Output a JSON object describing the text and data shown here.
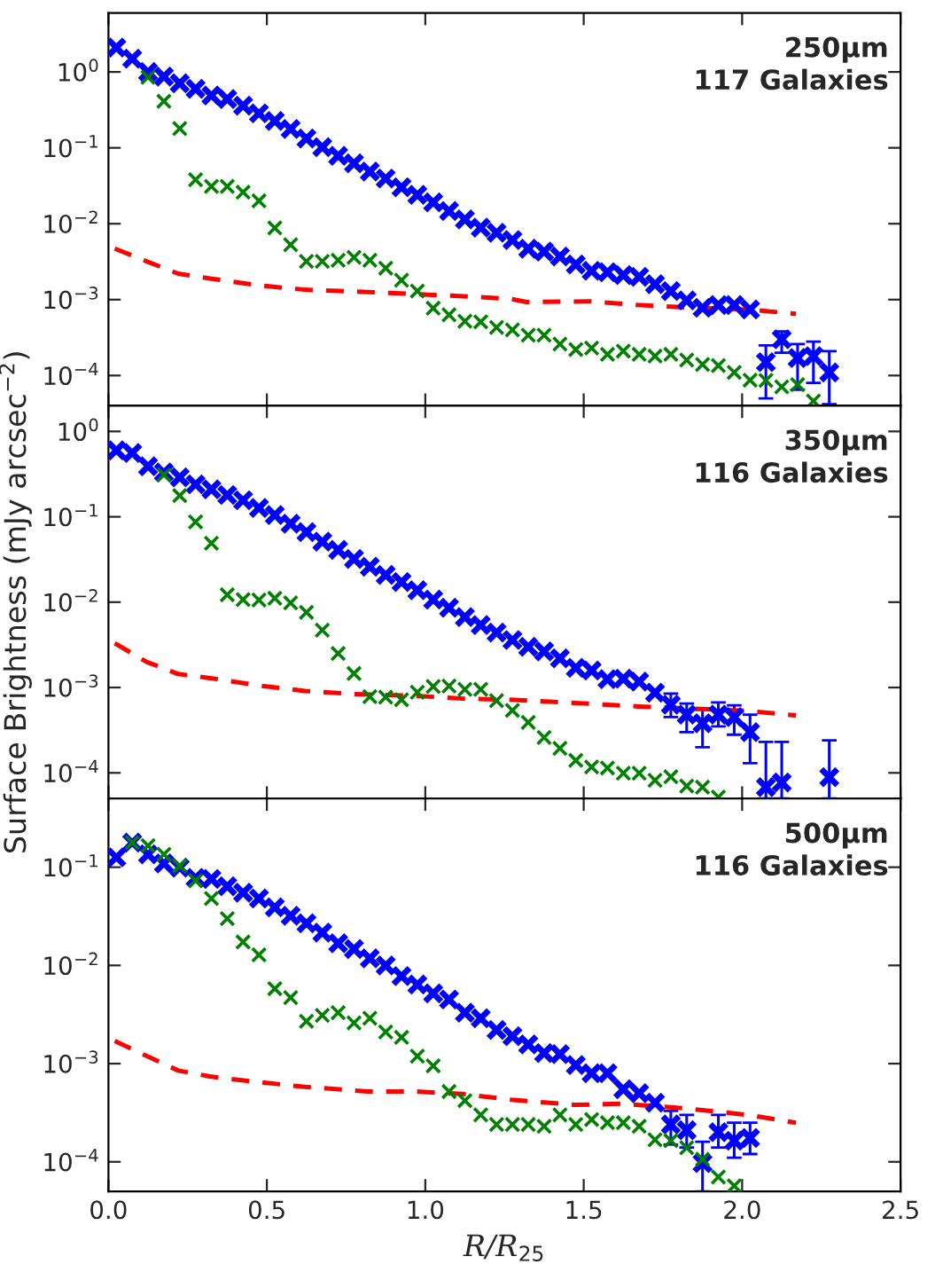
{
  "chart_data": [
    {
      "type": "scatter",
      "marker": "cross",
      "grid": false,
      "log": "y",
      "tick_labels": "y",
      "annotations": [
        "250μm",
        "117 Galaxies"
      ],
      "x": [
        0.025,
        0.075,
        0.125,
        0.175,
        0.225,
        0.275,
        0.325,
        0.375,
        0.425,
        0.475,
        0.525,
        0.575,
        0.625,
        0.675,
        0.725,
        0.775,
        0.825,
        0.875,
        0.925,
        0.975,
        1.025,
        1.075,
        1.125,
        1.175,
        1.225,
        1.275,
        1.325,
        1.375,
        1.425,
        1.475,
        1.525,
        1.575,
        1.625,
        1.675,
        1.725,
        1.775,
        1.825,
        1.875,
        1.925,
        1.975,
        2.025,
        2.075,
        2.125,
        2.175,
        2.225,
        2.275
      ],
      "xlim": [
        0,
        2.5
      ],
      "xticks": [
        0,
        0.5,
        1,
        1.5,
        2,
        2.5
      ],
      "ylim": [
        4e-05,
        6
      ],
      "yticks": [
        {
          "value": 1,
          "label": "10$^{0}$"
        },
        {
          "value": 0.1,
          "label": "10$^{−1}$"
        },
        {
          "value": 0.01,
          "label": "10$^{−2}$"
        },
        {
          "value": 0.001,
          "label": "10$^{−3}$"
        },
        {
          "value": 0.0001,
          "label": "10$^{−4}$"
        }
      ],
      "series": [
        {
          "color": "#0000ff",
          "values": [
            2.1,
            1.5,
            1.0,
            0.87,
            0.71,
            0.6,
            0.49,
            0.44,
            0.36,
            0.285,
            0.226,
            0.177,
            0.133,
            0.102,
            0.0785,
            0.0624,
            0.0488,
            0.0394,
            0.0302,
            0.024,
            0.0191,
            0.0147,
            0.0114,
            0.0089,
            0.0076,
            0.0061,
            0.0047,
            0.0043,
            0.0037,
            0.0029,
            0.0024,
            0.0023,
            0.0021,
            0.002,
            0.0016,
            0.0013,
            0.00098,
            0.00078,
            0.00085,
            0.00085,
            0.00074,
            0.00015,
            0.0003,
            0.00017,
            0.00018,
            0.00011
          ],
          "errors": [
            null,
            null,
            null,
            null,
            null,
            null,
            null,
            null,
            null,
            null,
            null,
            null,
            null,
            null,
            null,
            null,
            null,
            null,
            null,
            null,
            null,
            null,
            null,
            null,
            null,
            null,
            null,
            null,
            null,
            null,
            null,
            null,
            null,
            null,
            null,
            null,
            null,
            null,
            null,
            null,
            null,
            [
              5e-05,
              0.00025
            ],
            [
              0.0002,
              0.00038
            ],
            [
              6.5e-05,
              0.00026
            ],
            [
              8e-05,
              0.00028
            ],
            [
              4.2e-05,
              0.00021
            ]
          ]
        },
        {
          "color": "#008000",
          "values": [
            null,
            null,
            0.85,
            0.41,
            0.18,
            0.038,
            0.031,
            0.031,
            0.026,
            0.02,
            0.0088,
            0.0053,
            0.0032,
            0.0032,
            0.0033,
            0.0036,
            0.0033,
            0.0026,
            0.0018,
            0.0013,
            0.00077,
            0.00063,
            0.00052,
            0.00051,
            0.00043,
            0.0004,
            0.00034,
            0.00034,
            0.00026,
            0.00022,
            0.00023,
            0.00019,
            0.00021,
            0.00019,
            0.00018,
            0.00019,
            0.00016,
            0.00014,
            0.000135,
            0.00011,
            8.7e-05,
            8.6e-05,
            7.1e-05,
            7.6e-05,
            4.6e-05,
            null
          ]
        },
        {
          "type": "line",
          "color": "#ff0000",
          "line_style": "dashed",
          "marker": "none",
          "x": [
            0.02,
            0.12,
            0.22,
            0.32,
            0.47,
            0.62,
            0.82,
            0.97,
            1.12,
            1.27,
            1.32,
            1.52,
            1.67,
            1.82,
            2.02,
            2.17
          ],
          "values": [
            0.0047,
            0.0032,
            0.0022,
            0.0019,
            0.00155,
            0.00135,
            0.00126,
            0.00118,
            0.00111,
            0.00102,
            0.00093,
            0.00095,
            0.00085,
            0.00079,
            0.00074,
            0.00065
          ]
        }
      ]
    },
    {
      "type": "scatter",
      "marker": "cross",
      "grid": false,
      "log": "y",
      "tick_labels": "y",
      "ylabel": "Surface Brightness (mJy arcsec$^{−2}$)",
      "annotations": [
        "350μm",
        "116 Galaxies"
      ],
      "x": [
        0.025,
        0.075,
        0.125,
        0.175,
        0.225,
        0.275,
        0.325,
        0.375,
        0.425,
        0.475,
        0.525,
        0.575,
        0.625,
        0.675,
        0.725,
        0.775,
        0.825,
        0.875,
        0.925,
        0.975,
        1.025,
        1.075,
        1.125,
        1.175,
        1.225,
        1.275,
        1.325,
        1.375,
        1.425,
        1.475,
        1.525,
        1.575,
        1.625,
        1.675,
        1.725,
        1.775,
        1.825,
        1.875,
        1.925,
        1.975,
        2.025,
        2.075,
        2.125,
        2.175,
        2.225,
        2.275
      ],
      "xlim": [
        0,
        2.5
      ],
      "xticks": [
        0,
        0.5,
        1,
        1.5,
        2,
        2.5
      ],
      "ylim": [
        5e-05,
        2
      ],
      "yticks": [
        {
          "value": 1,
          "label": "10$^{0}$"
        },
        {
          "value": 0.1,
          "label": "10$^{−1}$"
        },
        {
          "value": 0.01,
          "label": "10$^{−2}$"
        },
        {
          "value": 0.001,
          "label": "10$^{−3}$"
        },
        {
          "value": 0.0001,
          "label": "10$^{−4}$"
        }
      ],
      "series": [
        {
          "color": "#0000ff",
          "values": [
            0.6,
            0.56,
            0.39,
            0.33,
            0.29,
            0.24,
            0.21,
            0.18,
            0.156,
            0.127,
            0.105,
            0.083,
            0.066,
            0.051,
            0.041,
            0.032,
            0.026,
            0.0208,
            0.0172,
            0.0138,
            0.0107,
            0.0086,
            0.0067,
            0.0054,
            0.0044,
            0.0036,
            0.003,
            0.00265,
            0.0022,
            0.0017,
            0.00158,
            0.00125,
            0.00127,
            0.00117,
            0.00087,
            0.00063,
            0.00048,
            0.00038,
            0.00048,
            0.00045,
            0.0003,
            6.8e-05,
            7.7e-05,
            null,
            null,
            8.9e-05
          ],
          "errors": [
            null,
            null,
            null,
            null,
            null,
            null,
            null,
            null,
            null,
            null,
            null,
            null,
            null,
            null,
            null,
            null,
            null,
            null,
            null,
            null,
            null,
            null,
            null,
            null,
            null,
            null,
            null,
            null,
            null,
            null,
            null,
            null,
            null,
            null,
            null,
            [
              0.00045,
              0.00085
            ],
            [
              0.0003,
              0.00065
            ],
            [
              0.0002,
              0.00055
            ],
            [
              0.00035,
              0.00067
            ],
            [
              0.00028,
              0.00062
            ],
            [
              0.00013,
              0.00048
            ],
            [
              5e-05,
              0.00023
            ],
            [
              5e-05,
              0.00023
            ],
            null,
            null,
            [
              5e-05,
              0.00024
            ]
          ]
        },
        {
          "color": "#008000",
          "values": [
            null,
            null,
            null,
            0.31,
            0.177,
            0.087,
            0.049,
            0.0122,
            0.0107,
            0.0106,
            0.0111,
            0.0098,
            0.0076,
            0.0047,
            0.0025,
            0.00146,
            0.00078,
            0.00077,
            0.00072,
            0.00088,
            0.00103,
            0.00104,
            0.00095,
            0.00095,
            0.0007,
            0.00054,
            0.00039,
            0.00026,
            0.000194,
            0.00014,
            0.000117,
            0.000114,
            9.9e-05,
            9.9e-05,
            8.2e-05,
            9e-05,
            7e-05,
            6.8e-05,
            5.2e-05,
            null,
            null,
            null,
            null,
            null,
            null,
            null
          ]
        },
        {
          "type": "line",
          "color": "#ff0000",
          "line_style": "dashed",
          "marker": "none",
          "x": [
            0.02,
            0.12,
            0.22,
            0.32,
            0.47,
            0.62,
            0.77,
            0.97,
            1.12,
            1.27,
            1.47,
            1.67,
            1.87,
            2.02,
            2.17
          ],
          "values": [
            0.0033,
            0.002,
            0.00144,
            0.00129,
            0.00106,
            0.00091,
            0.00084,
            0.0008,
            0.00074,
            0.00072,
            0.00066,
            0.0006,
            0.00056,
            0.00053,
            0.00047
          ]
        }
      ]
    },
    {
      "type": "scatter",
      "marker": "cross",
      "grid": false,
      "log": "y",
      "xlabel": "R/R$_{25}$",
      "annotations": [
        "500μm",
        "116 Galaxies"
      ],
      "x": [
        0.025,
        0.075,
        0.125,
        0.175,
        0.225,
        0.275,
        0.325,
        0.375,
        0.425,
        0.475,
        0.525,
        0.575,
        0.625,
        0.675,
        0.725,
        0.775,
        0.825,
        0.875,
        0.925,
        0.975,
        1.025,
        1.075,
        1.125,
        1.175,
        1.225,
        1.275,
        1.325,
        1.375,
        1.425,
        1.475,
        1.525,
        1.575,
        1.625,
        1.675,
        1.725,
        1.775,
        1.825,
        1.875,
        1.925,
        1.975,
        2.025
      ],
      "xlim": [
        0,
        2.5
      ],
      "xticks": [
        {
          "value": 0,
          "label": "0.0"
        },
        0.5,
        {
          "value": 1,
          "label": "1.0"
        },
        1.5,
        {
          "value": 2,
          "label": "2.0"
        },
        2.5
      ],
      "ylim": [
        5e-05,
        0.5
      ],
      "yticks": [
        {
          "value": 0.1,
          "label": "10$^{−1}$"
        },
        {
          "value": 0.01,
          "label": "10$^{−2}$"
        },
        {
          "value": 0.001,
          "label": "10$^{−3}$"
        },
        {
          "value": 0.0001,
          "label": "10$^{−4}$"
        }
      ],
      "series": [
        {
          "color": "#0000ff",
          "values": [
            0.126,
            0.178,
            0.135,
            0.109,
            0.099,
            0.078,
            0.076,
            0.064,
            0.055,
            0.048,
            0.039,
            0.032,
            0.0268,
            0.0216,
            0.0168,
            0.0147,
            0.0118,
            0.01,
            0.0078,
            0.0064,
            0.0052,
            0.0045,
            0.0033,
            0.0029,
            0.0022,
            0.0019,
            0.00157,
            0.00128,
            0.00125,
            0.00097,
            0.0008,
            0.0008,
            0.00055,
            0.0005,
            0.0004,
            0.00024,
            0.00021,
            9.7e-05,
            0.0002,
            0.000164,
            0.000175
          ],
          "errors": [
            null,
            null,
            null,
            null,
            null,
            null,
            null,
            null,
            null,
            null,
            null,
            null,
            null,
            null,
            null,
            null,
            null,
            null,
            null,
            null,
            null,
            null,
            null,
            null,
            null,
            null,
            null,
            null,
            null,
            null,
            null,
            null,
            null,
            null,
            null,
            [
              0.00015,
              0.00033
            ],
            [
              0.00014,
              0.0003
            ],
            [
              5e-05,
              0.00016
            ],
            [
              0.00014,
              0.0003
            ],
            [
              0.00011,
              0.00025
            ],
            [
              0.00012,
              0.00025
            ]
          ]
        },
        {
          "color": "#008000",
          "values": [
            null,
            0.178,
            0.166,
            0.135,
            0.103,
            0.073,
            0.048,
            0.03,
            0.0173,
            0.0128,
            0.0058,
            0.0047,
            0.0027,
            0.0031,
            0.0033,
            0.0026,
            0.0029,
            0.0021,
            0.00185,
            0.00119,
            0.00095,
            0.00052,
            0.00042,
            0.0003,
            0.00024,
            0.00024,
            0.00024,
            0.00023,
            0.0003,
            0.00024,
            0.00027,
            0.00025,
            0.00025,
            0.00023,
            0.000168,
            0.000164,
            0.000139,
            0.000106,
            7e-05,
            5.7e-05,
            null
          ]
        },
        {
          "type": "line",
          "color": "#ff0000",
          "line_style": "dashed",
          "marker": "none",
          "x": [
            0.02,
            0.12,
            0.22,
            0.32,
            0.47,
            0.62,
            0.82,
            0.97,
            1.12,
            1.27,
            1.47,
            1.62,
            1.82,
            2.02,
            2.17
          ],
          "values": [
            0.0017,
            0.0012,
            0.00085,
            0.00074,
            0.00065,
            0.00058,
            0.00052,
            0.00052,
            0.00049,
            0.00043,
            0.00038,
            0.00039,
            0.00035,
            0.0003,
            0.00025
          ]
        }
      ]
    }
  ]
}
